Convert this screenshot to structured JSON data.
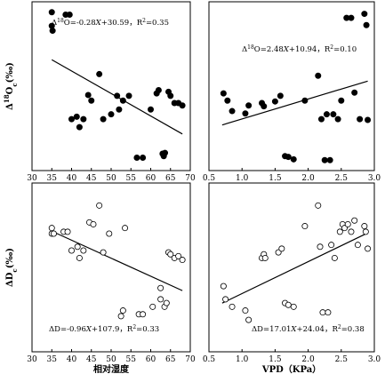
{
  "chart_data": [
    {
      "type": "scatter",
      "xlim": [
        30,
        70
      ],
      "ylim": [
        7,
        28
      ],
      "xticks": [
        "30",
        "35",
        "40",
        "45",
        "50",
        "55",
        "60",
        "65",
        "70"
      ],
      "xtick_values": [
        30,
        35,
        40,
        45,
        50,
        55,
        60,
        65,
        70
      ],
      "yticks": [],
      "ylabel": "Δ18Oc(‰)",
      "xlabel": "",
      "equation": "Δ18O=-0.28X+30.59，R2=0.35",
      "marker": "filled",
      "fit": {
        "slope": -0.28,
        "intercept": 30.59,
        "x": [
          35,
          68
        ]
      },
      "points": [
        {
          "x": 35,
          "y": 26.7
        },
        {
          "x": 35,
          "y": 25.0
        },
        {
          "x": 35.2,
          "y": 24.4
        },
        {
          "x": 38.5,
          "y": 26.4
        },
        {
          "x": 39.5,
          "y": 26.4
        },
        {
          "x": 40,
          "y": 13.4
        },
        {
          "x": 41.3,
          "y": 13.7
        },
        {
          "x": 42,
          "y": 12.4
        },
        {
          "x": 43,
          "y": 13.4
        },
        {
          "x": 44.2,
          "y": 16.4
        },
        {
          "x": 45,
          "y": 15.7
        },
        {
          "x": 47,
          "y": 19.0
        },
        {
          "x": 48,
          "y": 13.4
        },
        {
          "x": 50,
          "y": 14.0
        },
        {
          "x": 51.5,
          "y": 16.3
        },
        {
          "x": 52,
          "y": 14.6
        },
        {
          "x": 53,
          "y": 15.7
        },
        {
          "x": 54.5,
          "y": 16.3
        },
        {
          "x": 56.5,
          "y": 8.6
        },
        {
          "x": 58,
          "y": 8.6
        },
        {
          "x": 60,
          "y": 14.6
        },
        {
          "x": 61.5,
          "y": 16.6
        },
        {
          "x": 62,
          "y": 17.0
        },
        {
          "x": 63,
          "y": 9.1
        },
        {
          "x": 63.3,
          "y": 8.8
        },
        {
          "x": 63.6,
          "y": 9.2
        },
        {
          "x": 64.5,
          "y": 16.8
        },
        {
          "x": 65,
          "y": 16.3
        },
        {
          "x": 66,
          "y": 15.4
        },
        {
          "x": 67,
          "y": 15.4
        },
        {
          "x": 68,
          "y": 15.1
        }
      ]
    },
    {
      "type": "scatter",
      "xlim": [
        0.5,
        3.0
      ],
      "ylim": [
        7,
        28
      ],
      "xticks": [
        "0.5",
        "1.0",
        "1.5",
        "2.0",
        "2.5",
        "3.0"
      ],
      "xtick_values": [
        0.5,
        1.0,
        1.5,
        2.0,
        2.5,
        3.0
      ],
      "yticks": [],
      "ylabel": "",
      "xlabel": "",
      "equation": "Δ18O=2.48X+10.94，R2=0.10",
      "marker": "filled",
      "fit": {
        "slope": 2.48,
        "intercept": 10.94,
        "x": [
          0.7,
          2.9
        ]
      },
      "points": [
        {
          "x": 0.72,
          "y": 16.6
        },
        {
          "x": 0.78,
          "y": 15.7
        },
        {
          "x": 0.85,
          "y": 14.4
        },
        {
          "x": 1.05,
          "y": 14.1
        },
        {
          "x": 1.1,
          "y": 15.1
        },
        {
          "x": 1.3,
          "y": 15.4
        },
        {
          "x": 1.33,
          "y": 15.0
        },
        {
          "x": 1.5,
          "y": 15.6
        },
        {
          "x": 1.58,
          "y": 16.3
        },
        {
          "x": 1.65,
          "y": 8.8
        },
        {
          "x": 1.7,
          "y": 8.7
        },
        {
          "x": 1.78,
          "y": 8.4
        },
        {
          "x": 1.95,
          "y": 15.7
        },
        {
          "x": 2.15,
          "y": 18.8
        },
        {
          "x": 2.2,
          "y": 13.4
        },
        {
          "x": 2.25,
          "y": 8.3
        },
        {
          "x": 2.28,
          "y": 14.0
        },
        {
          "x": 2.33,
          "y": 8.3
        },
        {
          "x": 2.38,
          "y": 14.0
        },
        {
          "x": 2.45,
          "y": 13.4
        },
        {
          "x": 2.5,
          "y": 15.7
        },
        {
          "x": 2.58,
          "y": 26.0
        },
        {
          "x": 2.65,
          "y": 26.0
        },
        {
          "x": 2.7,
          "y": 16.7
        },
        {
          "x": 2.78,
          "y": 13.4
        },
        {
          "x": 2.85,
          "y": 26.5
        },
        {
          "x": 2.88,
          "y": 25.1
        },
        {
          "x": 2.9,
          "y": 13.3
        }
      ]
    },
    {
      "type": "scatter",
      "xlim": [
        30,
        70
      ],
      "ylim": [
        10,
        100
      ],
      "xticks": [
        "30",
        "35",
        "40",
        "45",
        "50",
        "55",
        "60",
        "65",
        "70"
      ],
      "xtick_values": [
        30,
        35,
        40,
        45,
        50,
        55,
        60,
        65,
        70
      ],
      "yticks": [],
      "ylabel": "ΔDc(‰)",
      "xlabel": "相对湿度",
      "equation": "ΔD=-0.96X+107.9，R2=0.33",
      "marker": "open",
      "fit": {
        "slope": -0.96,
        "intercept": 107.9,
        "x": [
          35,
          68
        ]
      },
      "points": [
        {
          "x": 35,
          "y": 76
        },
        {
          "x": 35,
          "y": 73
        },
        {
          "x": 35.5,
          "y": 73
        },
        {
          "x": 38,
          "y": 74
        },
        {
          "x": 39,
          "y": 74
        },
        {
          "x": 40,
          "y": 64
        },
        {
          "x": 41.5,
          "y": 66
        },
        {
          "x": 42,
          "y": 60
        },
        {
          "x": 43,
          "y": 64
        },
        {
          "x": 44.5,
          "y": 79
        },
        {
          "x": 45.5,
          "y": 78
        },
        {
          "x": 47,
          "y": 88
        },
        {
          "x": 48,
          "y": 63
        },
        {
          "x": 49.5,
          "y": 73
        },
        {
          "x": 52.5,
          "y": 29
        },
        {
          "x": 53,
          "y": 32
        },
        {
          "x": 53.5,
          "y": 76
        },
        {
          "x": 57,
          "y": 30
        },
        {
          "x": 58,
          "y": 30
        },
        {
          "x": 60.5,
          "y": 34
        },
        {
          "x": 62.5,
          "y": 38
        },
        {
          "x": 62.5,
          "y": 44
        },
        {
          "x": 63.5,
          "y": 34
        },
        {
          "x": 64,
          "y": 36
        },
        {
          "x": 64.5,
          "y": 63
        },
        {
          "x": 65,
          "y": 62
        },
        {
          "x": 66,
          "y": 60
        },
        {
          "x": 67,
          "y": 61
        },
        {
          "x": 68,
          "y": 59
        }
      ]
    },
    {
      "type": "scatter",
      "xlim": [
        0.5,
        3.0
      ],
      "ylim": [
        10,
        100
      ],
      "xticks": [
        "0.5",
        "1.0",
        "1.5",
        "2.0",
        "2.5",
        "3.0"
      ],
      "xtick_values": [
        0.5,
        1.0,
        1.5,
        2.0,
        2.5,
        3.0
      ],
      "yticks": [],
      "ylabel": "",
      "xlabel": "VPD（KPa）",
      "equation": "ΔD=17.01X+24.04，R2=0.38",
      "marker": "open",
      "fit": {
        "slope": 17.01,
        "intercept": 24.04,
        "x": [
          0.7,
          2.9
        ]
      },
      "points": [
        {
          "x": 0.72,
          "y": 45
        },
        {
          "x": 0.75,
          "y": 38
        },
        {
          "x": 0.85,
          "y": 34
        },
        {
          "x": 1.05,
          "y": 32
        },
        {
          "x": 1.1,
          "y": 27
        },
        {
          "x": 1.3,
          "y": 60
        },
        {
          "x": 1.33,
          "y": 62
        },
        {
          "x": 1.35,
          "y": 60
        },
        {
          "x": 1.55,
          "y": 63
        },
        {
          "x": 1.6,
          "y": 65
        },
        {
          "x": 1.65,
          "y": 36
        },
        {
          "x": 1.7,
          "y": 35
        },
        {
          "x": 1.78,
          "y": 34
        },
        {
          "x": 1.95,
          "y": 77
        },
        {
          "x": 2.15,
          "y": 88
        },
        {
          "x": 2.18,
          "y": 66
        },
        {
          "x": 2.22,
          "y": 31
        },
        {
          "x": 2.3,
          "y": 31
        },
        {
          "x": 2.35,
          "y": 67
        },
        {
          "x": 2.4,
          "y": 60
        },
        {
          "x": 2.48,
          "y": 74
        },
        {
          "x": 2.52,
          "y": 78
        },
        {
          "x": 2.55,
          "y": 76
        },
        {
          "x": 2.6,
          "y": 78
        },
        {
          "x": 2.65,
          "y": 74
        },
        {
          "x": 2.7,
          "y": 80
        },
        {
          "x": 2.75,
          "y": 67
        },
        {
          "x": 2.85,
          "y": 77
        },
        {
          "x": 2.87,
          "y": 74
        },
        {
          "x": 2.9,
          "y": 65
        }
      ]
    }
  ]
}
